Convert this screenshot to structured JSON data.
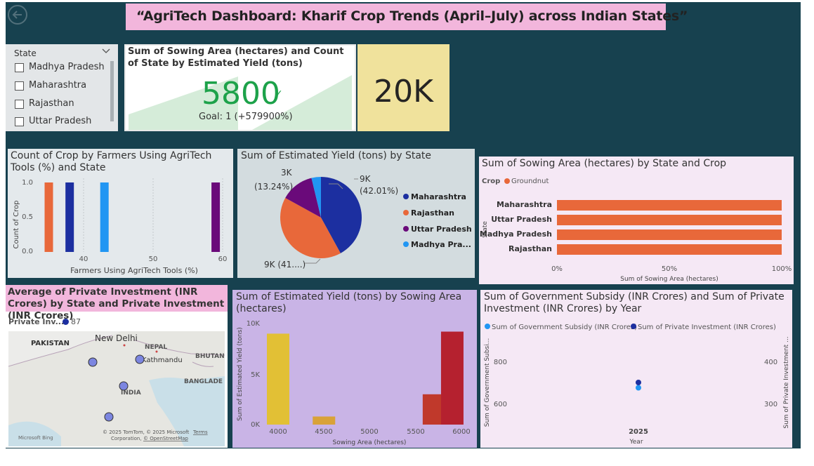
{
  "header": {
    "title": "“AgriTech Dashboard: Kharif Crop Trends (April–July) across Indian States”"
  },
  "colors": {
    "background": "#17414f",
    "title_bg": "#f2b6dc",
    "card_yellow": "#f0e29c",
    "map_title_bg": "#f2b6dc"
  },
  "icons": {
    "back": "back-arrow-icon",
    "chevron": "chevron-down-icon"
  },
  "slicer": {
    "title": "State",
    "items": [
      {
        "label": "Madhya Pradesh",
        "checked": false
      },
      {
        "label": "Maharashtra",
        "checked": false
      },
      {
        "label": "Rajasthan",
        "checked": false
      },
      {
        "label": "Uttar Pradesh",
        "checked": false
      }
    ]
  },
  "kpi_card": {
    "title": "Sum of Sowing Area (hectares) and Count of State by Estimated Yield (tons)",
    "value": "5800",
    "check": "✓",
    "goal": "Goal: 1 (+579900%)"
  },
  "card_20k": {
    "value": "20K"
  },
  "crop_count_chart": {
    "title": "Count of Crop by Farmers Using AgriTech Tools (%) and State",
    "ylabel": "Count of Crop",
    "xlabel": "Farmers Using AgriTech Tools (%)",
    "yticks": [
      "1.0",
      "0.5",
      "0.0"
    ],
    "xticks": [
      "40",
      "50",
      "60"
    ]
  },
  "pie_chart": {
    "title": "Sum of Estimated Yield (tons) by State",
    "labels": [
      {
        "value": "9K",
        "pct": "(42.01%)"
      },
      {
        "value": "3K",
        "pct": "(13.24%)"
      },
      {
        "value": "9K (41....)",
        "pct": ""
      }
    ],
    "legend": [
      "Maharashtra",
      "Rajasthan",
      "Uttar Pradesh",
      "Madhya Pra..."
    ]
  },
  "sowing_bar": {
    "title": "Sum of Sowing Area (hectares) by State and Crop",
    "legend_title": "Crop",
    "legend_item": "Groundnut",
    "ylabel": "State",
    "xlabel": "Sum of Sowing Area (hectares)",
    "xticks": [
      "0%",
      "50%",
      "100%"
    ]
  },
  "map": {
    "title": "Average of Private Investment (INR Crores) by State and Private Investment (INR Crores)",
    "legend_title": "Private Inv...",
    "legend_value": "87",
    "places": [
      "PAKISTAN",
      "New Delhi",
      "NEPAL",
      "Kathmandu",
      "BHUTAN",
      "BANGLADE",
      "INDIA"
    ],
    "attribution_1": "© 2025 TomTom, © 2025 Microsoft",
    "attribution_terms": "Terms",
    "attribution_2": "Corporation,",
    "attribution_osm": "© OpenStreetMap",
    "bing": "Microsoft Bing"
  },
  "yield_by_area": {
    "title": "Sum of Estimated Yield (tons) by Sowing Area (hectares)",
    "ylabel": "Sum of Estimated Yield (tons)",
    "xlabel": "Sowing Area (hectares)",
    "yticks": [
      "10K",
      "5K",
      "0K"
    ],
    "xticks": [
      "4000",
      "4500",
      "5000",
      "5500",
      "6000"
    ]
  },
  "subsidy_chart": {
    "title": "Sum of Government Subsidy (INR Crores) and Sum of Private Investment (INR Crores) by Year",
    "legend": [
      "Sum of Government Subsidy (INR Crores)",
      "Sum of Private Investment (INR Crores)"
    ],
    "ylabel_left": "Sum of Government Subsi...",
    "ylabel_right": "Sum of Private Investment ...",
    "yticks_left": [
      "800",
      "600"
    ],
    "yticks_right": [
      "400",
      "300"
    ],
    "xtick": "2025",
    "xlabel": "Year"
  },
  "chart_data": [
    {
      "type": "bar",
      "title": "Count of Crop by Farmers Using AgriTech Tools (%) and State",
      "xlabel": "Farmers Using AgriTech Tools (%)",
      "ylabel": "Count of Crop",
      "ylim": [
        0,
        1
      ],
      "points": [
        {
          "x": 35,
          "y": 1,
          "color": "#e8683a"
        },
        {
          "x": 38,
          "y": 1,
          "color": "#1c2fa0"
        },
        {
          "x": 43,
          "y": 1,
          "color": "#2196f3"
        },
        {
          "x": 59,
          "y": 1,
          "color": "#6a0a7a"
        }
      ]
    },
    {
      "type": "pie",
      "title": "Sum of Estimated Yield (tons) by State",
      "slices": [
        {
          "name": "Maharashtra",
          "pct": 42.01,
          "color": "#1c2fa0"
        },
        {
          "name": "Rajasthan",
          "pct": 41.0,
          "color": "#e8683a"
        },
        {
          "name": "Uttar Pradesh",
          "pct": 13.24,
          "color": "#6a0a7a"
        },
        {
          "name": "Madhya Pra...",
          "pct": 3.75,
          "color": "#2196f3"
        }
      ]
    },
    {
      "type": "bar",
      "title": "Sum of Sowing Area (hectares) by State and Crop",
      "categories": [
        "Maharashtra",
        "Uttar Pradesh",
        "Madhya Pradesh",
        "Rajasthan"
      ],
      "values": [
        100,
        100,
        100,
        100
      ],
      "series": [
        {
          "name": "Groundnut",
          "values": [
            100,
            100,
            100,
            100
          ]
        }
      ]
    },
    {
      "type": "bar",
      "title": "Sum of Estimated Yield (tons) by Sowing Area (hectares)",
      "xlabel": "Sowing Area (hectares)",
      "ylabel": "Sum of Estimated Yield (tons)",
      "ylim": [
        0,
        10000
      ],
      "points": [
        {
          "x": 4000,
          "y": 9000,
          "color": "#e2c035"
        },
        {
          "x": 4500,
          "y": 800,
          "color": "#d9a238"
        },
        {
          "x": 5700,
          "y": 3000,
          "color": "#c0392b"
        },
        {
          "x": 5900,
          "y": 9200,
          "color": "#b5212f"
        }
      ]
    },
    {
      "type": "scatter",
      "title": "Sum of Government Subsidy (INR Crores) and Sum of Private Investment (INR Crores) by Year",
      "x": [
        2025
      ],
      "series": [
        {
          "name": "Sum of Government Subsidy (INR Crores)",
          "values": [
            675
          ]
        },
        {
          "name": "Sum of Private Investment (INR Crores)",
          "values": [
            350
          ]
        }
      ]
    }
  ]
}
